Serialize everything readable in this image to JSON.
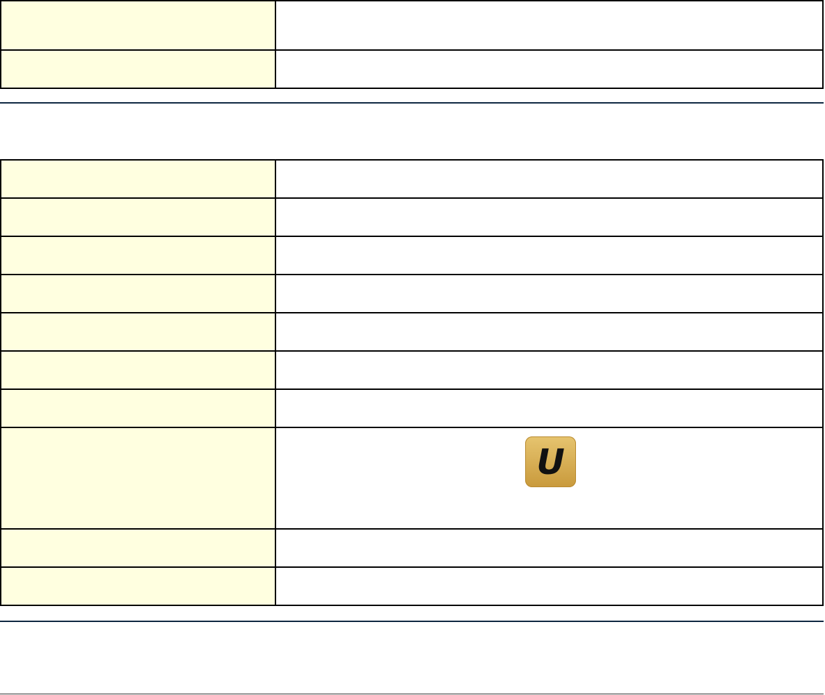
{
  "logo": {
    "text": "U",
    "colors": {
      "top": "#e6c46f",
      "bottom": "#c99a3c"
    }
  },
  "colors": {
    "label_cell": "#ffffe0",
    "rule": "#0d2640"
  }
}
